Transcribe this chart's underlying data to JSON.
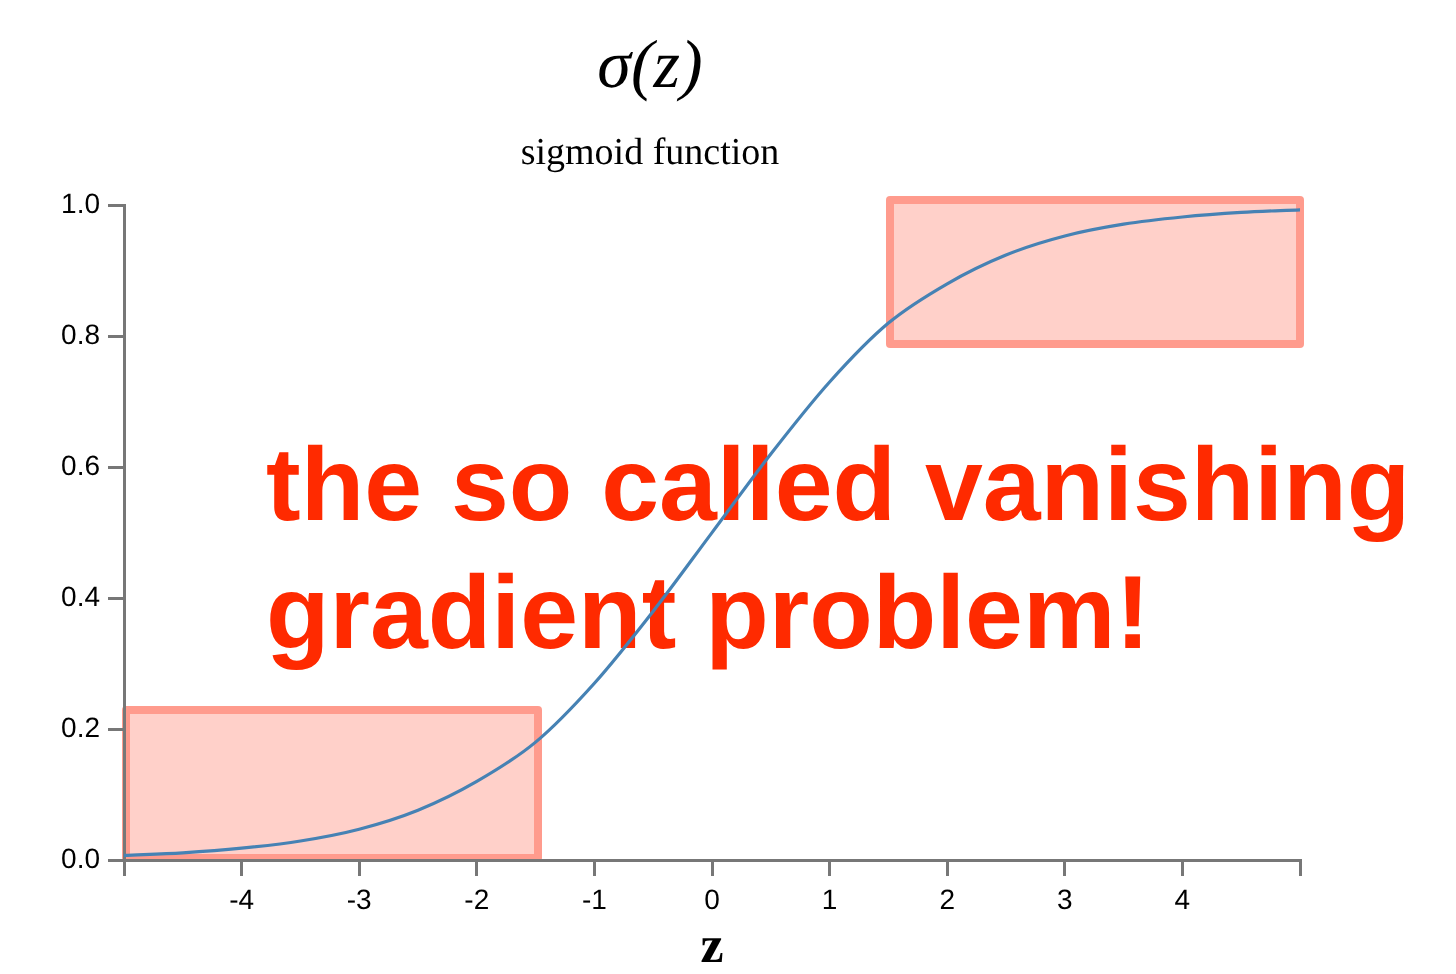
{
  "chart_data": {
    "type": "line",
    "title": "σ(z)",
    "subtitle": "sigmoid function",
    "xlabel": "z",
    "annotations": [
      "the so called vanishing gradient problem!"
    ],
    "x": [
      -5,
      -4.5,
      -4,
      -3.5,
      -3,
      -2.5,
      -2,
      -1.5,
      -1,
      -0.5,
      0,
      0.5,
      1,
      1.5,
      2,
      2.5,
      3,
      3.5,
      4,
      4.5,
      5
    ],
    "series": [
      {
        "color": "#4682b4",
        "values": [
          0.007,
          0.011,
          0.018,
          0.029,
          0.047,
          0.076,
          0.12,
          0.18,
          0.27,
          0.38,
          0.5,
          0.62,
          0.73,
          0.82,
          0.88,
          0.924,
          0.953,
          0.971,
          0.982,
          0.989,
          0.993
        ]
      }
    ],
    "xlim": [
      -5,
      5
    ],
    "xticks": [
      {
        "value": -5,
        "label": null
      },
      -4,
      -3,
      -2,
      -1,
      0,
      1,
      2,
      3,
      4,
      {
        "value": 5,
        "label": null
      }
    ],
    "ylim": [
      0,
      1
    ],
    "yticks": [
      {
        "value": 0,
        "label": "0.0"
      },
      0.2,
      0.4,
      0.6,
      0.8,
      {
        "value": 1,
        "label": "1.0"
      }
    ]
  }
}
